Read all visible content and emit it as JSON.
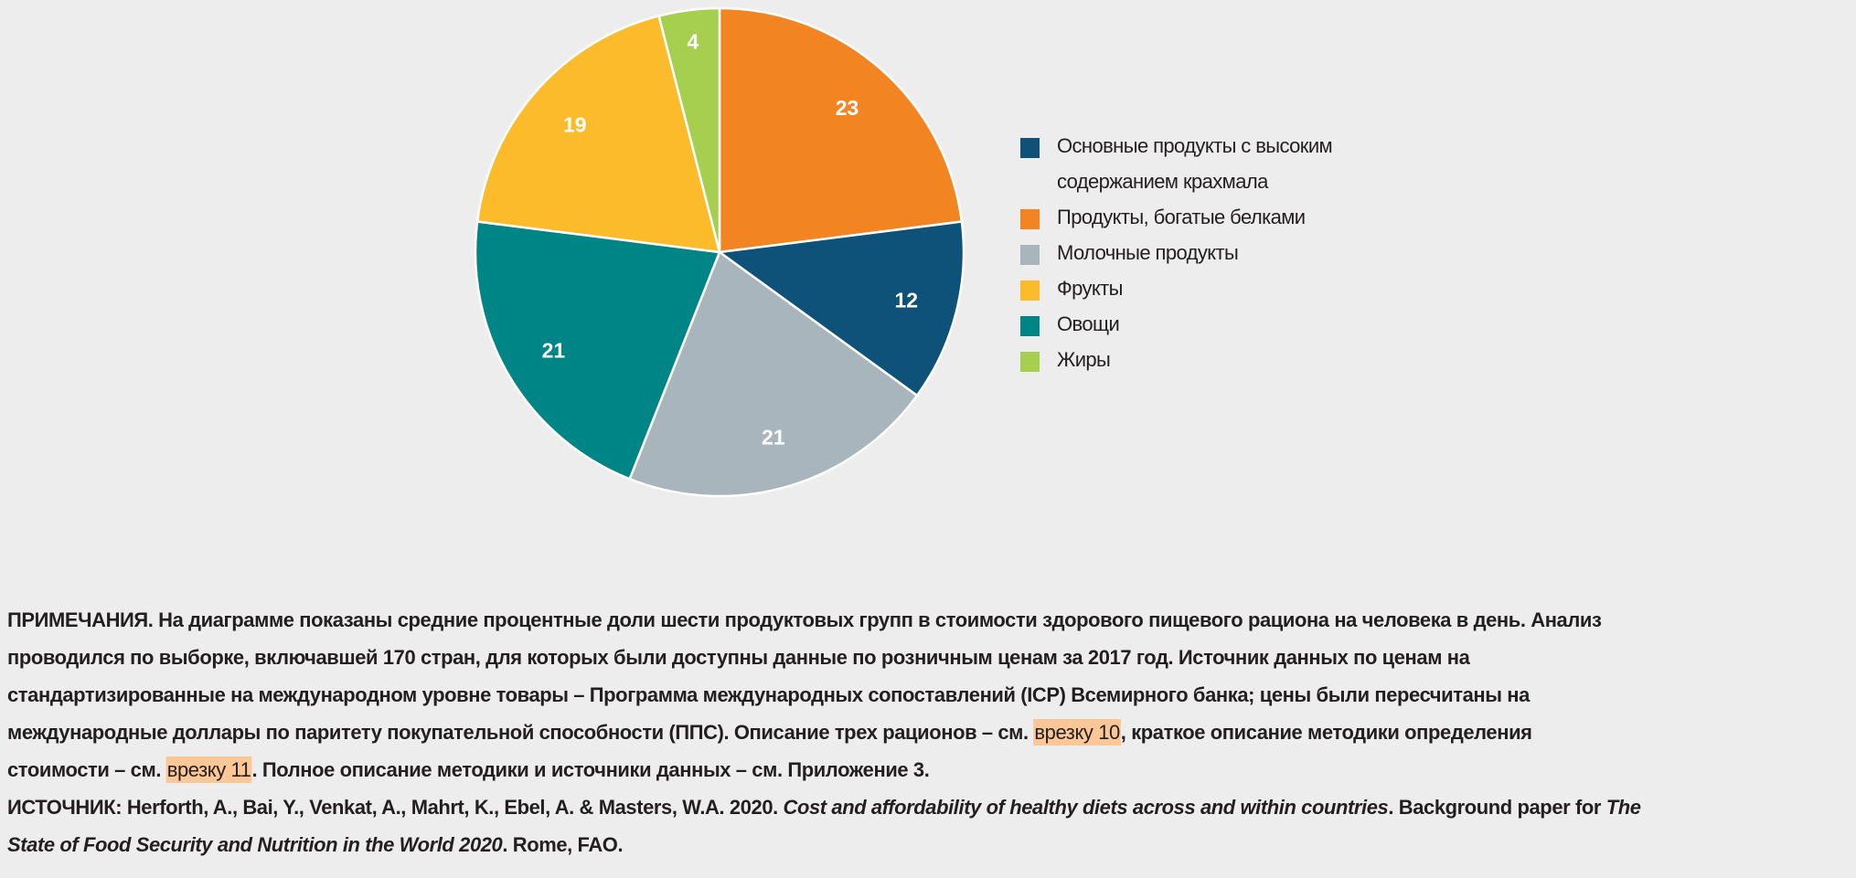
{
  "chart_data": {
    "type": "pie",
    "title": "",
    "start": "top, clockwise",
    "slices": [
      {
        "label": "Продукты, богатые белками",
        "value": 23,
        "color": "#f28421"
      },
      {
        "label": "Основные продукты с высоким содержанием крахмала",
        "value": 12,
        "color": "#0f5279"
      },
      {
        "label": "Молочные продукты",
        "value": 21,
        "color": "#a8b5bd"
      },
      {
        "label": "Овощи",
        "value": 21,
        "color": "#008587"
      },
      {
        "label": "Фрукты",
        "value": 19,
        "color": "#fcbb2b"
      },
      {
        "label": "Жиры",
        "value": 4,
        "color": "#a6cf4f"
      }
    ],
    "legend_position": "right",
    "legend": [
      {
        "label": "Основные продукты с высоким содержанием крахмала",
        "color": "#0f5279"
      },
      {
        "label": "Продукты, богатые белками",
        "color": "#f28421"
      },
      {
        "label": "Молочные продукты",
        "color": "#a8b5bd"
      },
      {
        "label": "Фрукты",
        "color": "#fcbb2b"
      },
      {
        "label": "Овощи",
        "color": "#008587"
      },
      {
        "label": "Жиры",
        "color": "#a6cf4f"
      }
    ]
  },
  "notes": {
    "lines": [
      [
        {
          "text": "ПРИМЕЧАНИЯ. На диаграмме показаны средние процентные доли шести продуктовых групп в стоимости здорового пищевого рациона на человека в день. Анализ"
        }
      ],
      [
        {
          "text": "проводился по выборке, включавшей 170 стран, для которых были доступны данные по розничным ценам за 2017 год. Источник данных по ценам на"
        }
      ],
      [
        {
          "text": "стандартизированные на международном уровне товары – Программа международных сопоставлений (ICP) Всемирного банка; цены были пересчитаны на"
        }
      ],
      [
        {
          "text": "международные доллары по паритету покупательной способности (ППС). Описание трех рационов – см. "
        },
        {
          "text": "врезку 10",
          "style": "link"
        },
        {
          "text": ", краткое описание методики определения"
        }
      ],
      [
        {
          "text": "стоимости – см. "
        },
        {
          "text": "врезку 11",
          "style": "link"
        },
        {
          "text": ". Полное описание методики и источники данных – см. Приложение 3."
        }
      ],
      [
        {
          "text": "ИСТОЧНИК: Herforth, A., Bai, Y., Venkat, A., Mahrt, K., Ebel, A. & Masters, W.A. 2020. "
        },
        {
          "text": "Cost and affordability of healthy diets across and within countries",
          "style": "italic"
        },
        {
          "text": ". Background paper for "
        },
        {
          "text": "The",
          "style": "italic"
        }
      ],
      [
        {
          "text": "State of Food Security and Nutrition in the World 2020",
          "style": "italic"
        },
        {
          "text": ". Rome, FAO."
        }
      ]
    ]
  }
}
